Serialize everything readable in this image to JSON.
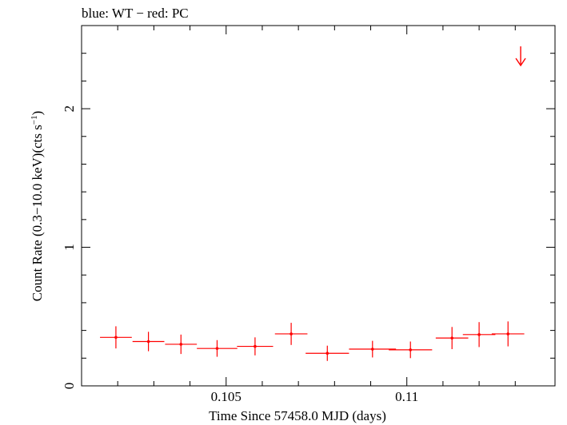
{
  "chart_data": {
    "type": "scatter",
    "title": "blue: WT − red: PC",
    "xlabel": "Time Since 57458.0 MJD (days)",
    "ylabel_main": "Count Rate (0.3−10.0 keV)(cts s",
    "ylabel_sup": "−1",
    "ylabel_end": ")",
    "xlim": [
      0.101,
      0.1141
    ],
    "ylim": [
      0,
      2.6
    ],
    "x_ticks": [
      0.105,
      0.11
    ],
    "x_tick_labels": [
      "0.105",
      "0.11"
    ],
    "y_ticks": [
      0,
      1,
      2
    ],
    "y_tick_labels": [
      "0",
      "1",
      "2"
    ],
    "series": [
      {
        "color": "#ff0000",
        "points": [
          {
            "x": 0.10195,
            "xerr": 0.00044,
            "y": 0.35,
            "yerr": 0.08
          },
          {
            "x": 0.10285,
            "xerr": 0.00044,
            "y": 0.32,
            "yerr": 0.07
          },
          {
            "x": 0.10375,
            "xerr": 0.00044,
            "y": 0.3,
            "yerr": 0.07
          },
          {
            "x": 0.10475,
            "xerr": 0.00056,
            "y": 0.27,
            "yerr": 0.06
          },
          {
            "x": 0.1058,
            "xerr": 0.0005,
            "y": 0.285,
            "yerr": 0.065
          },
          {
            "x": 0.1068,
            "xerr": 0.00045,
            "y": 0.375,
            "yerr": 0.08
          },
          {
            "x": 0.1078,
            "xerr": 0.0006,
            "y": 0.235,
            "yerr": 0.055
          },
          {
            "x": 0.10905,
            "xerr": 0.00065,
            "y": 0.265,
            "yerr": 0.06
          },
          {
            "x": 0.1101,
            "xerr": 0.0006,
            "y": 0.26,
            "yerr": 0.06
          },
          {
            "x": 0.11125,
            "xerr": 0.00045,
            "y": 0.345,
            "yerr": 0.08
          },
          {
            "x": 0.112,
            "xerr": 0.00045,
            "y": 0.37,
            "yerr": 0.09
          },
          {
            "x": 0.1128,
            "xerr": 0.00045,
            "y": 0.375,
            "yerr": 0.09
          }
        ],
        "upper_limits": [
          {
            "x": 0.11315,
            "y": 2.45
          }
        ]
      }
    ]
  }
}
